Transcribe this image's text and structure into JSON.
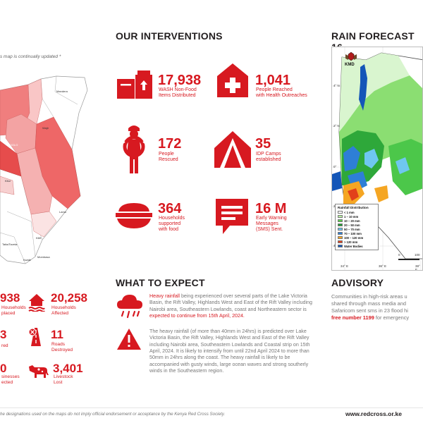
{
  "left_map": {
    "note": "s map is continually updated *",
    "labels": [
      "Mandera",
      "Wajir",
      "ISIOLO",
      "Kitui",
      "Lamu",
      "Kilifi",
      "Taita/Taveta",
      "Kwale",
      "Mombasa"
    ]
  },
  "left_stats": [
    {
      "value": "938",
      "label_line1": "Households",
      "label_line2": "placed",
      "icon": "house-displaced-icon"
    },
    {
      "value": "20,258",
      "label_line1": "Households",
      "label_line2": "Affected",
      "icon": "house-flood-icon"
    },
    {
      "value": "",
      "label_line1": "red",
      "label_line2": "",
      "icon": ""
    },
    {
      "value": "11",
      "label_line1": "Roads",
      "label_line2": "Destroyed",
      "icon": "road-blocked-icon"
    },
    {
      "value": "0",
      "label_line1": "sinesses",
      "label_line2": "ected",
      "icon": ""
    },
    {
      "value": "3,401",
      "label_line1": "Livestock",
      "label_line2": "Lost",
      "icon": "cow-icon"
    }
  ],
  "interventions": {
    "title": "OUR INTERVENTIONS",
    "items": [
      {
        "value": "17,938",
        "line1": "WASH Non-Food",
        "line2": "Items Distributed",
        "icon": "wash-kit-icon"
      },
      {
        "value": "1,041",
        "line1": "People Reached",
        "line2": "with Health Outreaches",
        "icon": "health-house-icon"
      },
      {
        "value": "172",
        "line1": "People",
        "line2": "Rescued",
        "icon": "rescue-person-icon"
      },
      {
        "value": "35",
        "line1": "IDP Camps",
        "line2": "established",
        "icon": "tent-icon"
      },
      {
        "value": "364",
        "line1": "Households",
        "line2": "supported",
        "line3": "with food",
        "icon": "food-bowl-icon"
      },
      {
        "value": "16 M",
        "line1": "Early Warning",
        "line2": "Messages",
        "line3": "(SMS) Sent.",
        "icon": "sms-icon"
      }
    ]
  },
  "expect": {
    "title": "WHAT TO EXPECT",
    "p1_hl": "Heavy rainfall",
    "p1_a": " being experienced over several parts of the Lake Victoria Basin, the Rift Valley, Highlands West and East of the Rift Valley including Nairobi area, Southeastern Lowlands, coast and Northeastern sector is ",
    "p1_hl2": "expected to continue from 15th April, 2024.",
    "p2": "The heavy rainfall (of more than 40mm in 24hrs) is predicted over Lake Victoria Basin, the Rift Valley, Highlands West and East of the Rift Valley including Nairobi area, Southeastern Lowlands and Coastal strip on 15th April, 2024. It is likely to intensify from until 22nd April 2024 to more than 50mm in 24hrs along the coast. The heavy rainfall is likely to be accompanied with gusty winds, large ocean waves and strong southerly winds in the Southeastern region."
  },
  "forecast": {
    "title": "RAIN FORECAST 16",
    "kmd": "KMD",
    "lat_labels": [
      "4° N",
      "2° N",
      "0°",
      "2° S",
      "4° S"
    ],
    "lon_labels": [
      "34° E",
      "36° E",
      "38° E"
    ],
    "scale_labels": [
      "0",
      "100"
    ],
    "legend_title": "Rainfall Distribution",
    "legend": [
      {
        "label": "< 1 mm",
        "color": "#ffffff"
      },
      {
        "label": "1 – 10 mm",
        "color": "#b6f0a0"
      },
      {
        "label": "10 – 20 mm",
        "color": "#5bd04a"
      },
      {
        "label": "20 – 50 mm",
        "color": "#1f9e2f"
      },
      {
        "label": "50 – 70 mm",
        "color": "#6fc7f0"
      },
      {
        "label": "70 – 100 mm",
        "color": "#2e7fd6"
      },
      {
        "label": "100 – 120 mm",
        "color": "#f5a623"
      },
      {
        "label": "> 120 mm",
        "color": "#e2401a"
      },
      {
        "label": "Water Bodies",
        "color": "#1456b8"
      }
    ]
  },
  "advisory": {
    "title": "ADVISORY",
    "line1": "Communities in high-risk areas u",
    "line2": "shared through mass media and",
    "line3": "Safaricom sent sms in 23 flood hi",
    "line4_hl": "free number 1199",
    "line4_rest": " for emergency"
  },
  "footer": {
    "disclaimer": "he designations used on the maps do not imply official endorsement or acceptance by the Kenya Red Cross Society.",
    "url": "www.redcross.or.ke"
  },
  "colors": {
    "accent": "#d71920",
    "text": "#231f20"
  }
}
